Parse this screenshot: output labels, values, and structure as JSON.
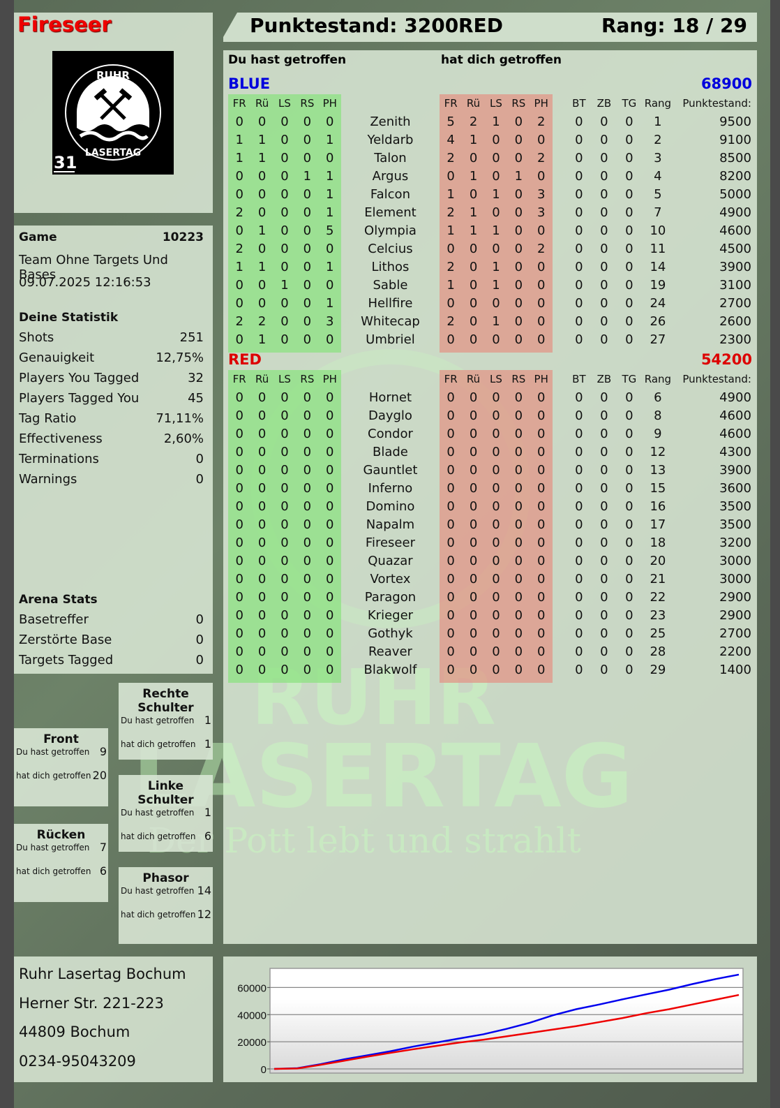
{
  "player": "Fireseer",
  "header": {
    "score_label": "Punktestand: 3200",
    "team": "RED",
    "rank_label": "Rang: 18 / 29"
  },
  "logo": {
    "text_top": "RUHR",
    "text_bottom": "LASERTAG",
    "number": "31"
  },
  "watermark": {
    "line1": "RUHR",
    "line2": "LASERTAG",
    "slogan": "Der Pott lebt und strahlt"
  },
  "section_labels": {
    "you_hit": "Du hast getroffen",
    "hit_you": "hat dich getroffen"
  },
  "columns": {
    "hits": [
      "FR",
      "Rü",
      "LS",
      "RS",
      "PH"
    ],
    "extra": [
      "BT",
      "ZB",
      "TG",
      "Rang",
      "Punktestand:"
    ]
  },
  "teams": [
    {
      "name": "BLUE",
      "score": "68900",
      "color": "#0000dd",
      "players": [
        [
          "Zenith",
          [
            0,
            0,
            0,
            0,
            0
          ],
          [
            5,
            2,
            1,
            0,
            2
          ],
          [
            0,
            0,
            0
          ],
          1,
          9500
        ],
        [
          "Yeldarb",
          [
            1,
            1,
            0,
            0,
            1
          ],
          [
            4,
            1,
            0,
            0,
            0
          ],
          [
            0,
            0,
            0
          ],
          2,
          9100
        ],
        [
          "Talon",
          [
            1,
            1,
            0,
            0,
            0
          ],
          [
            2,
            0,
            0,
            0,
            2
          ],
          [
            0,
            0,
            0
          ],
          3,
          8500
        ],
        [
          "Argus",
          [
            0,
            0,
            0,
            1,
            1
          ],
          [
            0,
            1,
            0,
            1,
            0
          ],
          [
            0,
            0,
            0
          ],
          4,
          8200
        ],
        [
          "Falcon",
          [
            0,
            0,
            0,
            0,
            1
          ],
          [
            1,
            0,
            1,
            0,
            3
          ],
          [
            0,
            0,
            0
          ],
          5,
          5000
        ],
        [
          "Element",
          [
            2,
            0,
            0,
            0,
            1
          ],
          [
            2,
            1,
            0,
            0,
            3
          ],
          [
            0,
            0,
            0
          ],
          7,
          4900
        ],
        [
          "Olympia",
          [
            0,
            1,
            0,
            0,
            5
          ],
          [
            1,
            1,
            1,
            0,
            0
          ],
          [
            0,
            0,
            0
          ],
          10,
          4600
        ],
        [
          "Celcius",
          [
            2,
            0,
            0,
            0,
            0
          ],
          [
            0,
            0,
            0,
            0,
            2
          ],
          [
            0,
            0,
            0
          ],
          11,
          4500
        ],
        [
          "Lithos",
          [
            1,
            1,
            0,
            0,
            1
          ],
          [
            2,
            0,
            1,
            0,
            0
          ],
          [
            0,
            0,
            0
          ],
          14,
          3900
        ],
        [
          "Sable",
          [
            0,
            0,
            1,
            0,
            0
          ],
          [
            1,
            0,
            1,
            0,
            0
          ],
          [
            0,
            0,
            0
          ],
          19,
          3100
        ],
        [
          "Hellfire",
          [
            0,
            0,
            0,
            0,
            1
          ],
          [
            0,
            0,
            0,
            0,
            0
          ],
          [
            0,
            0,
            0
          ],
          24,
          2700
        ],
        [
          "Whitecap",
          [
            2,
            2,
            0,
            0,
            3
          ],
          [
            2,
            0,
            1,
            0,
            0
          ],
          [
            0,
            0,
            0
          ],
          26,
          2600
        ],
        [
          "Umbriel",
          [
            0,
            1,
            0,
            0,
            0
          ],
          [
            0,
            0,
            0,
            0,
            0
          ],
          [
            0,
            0,
            0
          ],
          27,
          2300
        ]
      ]
    },
    {
      "name": "RED",
      "score": "54200",
      "color": "#dd0000",
      "players": [
        [
          "Hornet",
          [
            0,
            0,
            0,
            0,
            0
          ],
          [
            0,
            0,
            0,
            0,
            0
          ],
          [
            0,
            0,
            0
          ],
          6,
          4900
        ],
        [
          "Dayglo",
          [
            0,
            0,
            0,
            0,
            0
          ],
          [
            0,
            0,
            0,
            0,
            0
          ],
          [
            0,
            0,
            0
          ],
          8,
          4600
        ],
        [
          "Condor",
          [
            0,
            0,
            0,
            0,
            0
          ],
          [
            0,
            0,
            0,
            0,
            0
          ],
          [
            0,
            0,
            0
          ],
          9,
          4600
        ],
        [
          "Blade",
          [
            0,
            0,
            0,
            0,
            0
          ],
          [
            0,
            0,
            0,
            0,
            0
          ],
          [
            0,
            0,
            0
          ],
          12,
          4300
        ],
        [
          "Gauntlet",
          [
            0,
            0,
            0,
            0,
            0
          ],
          [
            0,
            0,
            0,
            0,
            0
          ],
          [
            0,
            0,
            0
          ],
          13,
          3900
        ],
        [
          "Inferno",
          [
            0,
            0,
            0,
            0,
            0
          ],
          [
            0,
            0,
            0,
            0,
            0
          ],
          [
            0,
            0,
            0
          ],
          15,
          3600
        ],
        [
          "Domino",
          [
            0,
            0,
            0,
            0,
            0
          ],
          [
            0,
            0,
            0,
            0,
            0
          ],
          [
            0,
            0,
            0
          ],
          16,
          3500
        ],
        [
          "Napalm",
          [
            0,
            0,
            0,
            0,
            0
          ],
          [
            0,
            0,
            0,
            0,
            0
          ],
          [
            0,
            0,
            0
          ],
          17,
          3500
        ],
        [
          "Fireseer",
          [
            0,
            0,
            0,
            0,
            0
          ],
          [
            0,
            0,
            0,
            0,
            0
          ],
          [
            0,
            0,
            0
          ],
          18,
          3200
        ],
        [
          "Quazar",
          [
            0,
            0,
            0,
            0,
            0
          ],
          [
            0,
            0,
            0,
            0,
            0
          ],
          [
            0,
            0,
            0
          ],
          20,
          3000
        ],
        [
          "Vortex",
          [
            0,
            0,
            0,
            0,
            0
          ],
          [
            0,
            0,
            0,
            0,
            0
          ],
          [
            0,
            0,
            0
          ],
          21,
          3000
        ],
        [
          "Paragon",
          [
            0,
            0,
            0,
            0,
            0
          ],
          [
            0,
            0,
            0,
            0,
            0
          ],
          [
            0,
            0,
            0
          ],
          22,
          2900
        ],
        [
          "Krieger",
          [
            0,
            0,
            0,
            0,
            0
          ],
          [
            0,
            0,
            0,
            0,
            0
          ],
          [
            0,
            0,
            0
          ],
          23,
          2900
        ],
        [
          "Gothyk",
          [
            0,
            0,
            0,
            0,
            0
          ],
          [
            0,
            0,
            0,
            0,
            0
          ],
          [
            0,
            0,
            0
          ],
          25,
          2700
        ],
        [
          "Reaver",
          [
            0,
            0,
            0,
            0,
            0
          ],
          [
            0,
            0,
            0,
            0,
            0
          ],
          [
            0,
            0,
            0
          ],
          28,
          2200
        ],
        [
          "Blakwolf",
          [
            0,
            0,
            0,
            0,
            0
          ],
          [
            0,
            0,
            0,
            0,
            0
          ],
          [
            0,
            0,
            0
          ],
          29,
          1400
        ]
      ]
    }
  ],
  "game": {
    "label": "Game",
    "id": "10223",
    "mode": "Team Ohne Targets Und Bases",
    "datetime": "09.07.2025 12:16:53"
  },
  "stats": {
    "title": "Deine Statistik",
    "items": [
      [
        "Shots",
        "251"
      ],
      [
        "Genauigkeit",
        "12,75%"
      ],
      [
        "Players You Tagged",
        "32"
      ],
      [
        "Players Tagged You",
        "45"
      ],
      [
        "Tag Ratio",
        "71,11%"
      ],
      [
        "Effectiveness",
        "2,60%"
      ],
      [
        "Terminations",
        "0"
      ],
      [
        "Warnings",
        "0"
      ]
    ]
  },
  "arena": {
    "title": "Arena Stats",
    "items": [
      [
        "Basetreffer",
        "0"
      ],
      [
        "Zerstörte Base",
        "0"
      ],
      [
        "Targets Tagged",
        "0"
      ]
    ]
  },
  "body_parts": [
    {
      "name": "Rechte Schulter",
      "you_hit": "1",
      "hit_you": "1"
    },
    {
      "name": "Front",
      "you_hit": "9",
      "hit_you": "20"
    },
    {
      "name": "Linke Schulter",
      "you_hit": "1",
      "hit_you": "6"
    },
    {
      "name": "Rücken",
      "you_hit": "7",
      "hit_you": "6"
    },
    {
      "name": "Phasor",
      "you_hit": "14",
      "hit_you": "12"
    }
  ],
  "address": [
    "Ruhr Lasertag Bochum",
    "Herner Str. 221-223",
    "44809 Bochum",
    "0234-95043209"
  ],
  "chart_data": {
    "type": "line",
    "ylim": [
      0,
      71000
    ],
    "yticks": [
      "0",
      "20000",
      "40000",
      "60000"
    ],
    "grid": true,
    "series": [
      {
        "color": "#0000ee",
        "values": [
          0,
          500,
          3500,
          7000,
          10000,
          13000,
          16500,
          19500,
          22500,
          25500,
          29500,
          34000,
          39500,
          44000,
          47500,
          51300,
          54900,
          58400,
          62500,
          66200,
          69500
        ]
      },
      {
        "color": "#ee0000",
        "values": [
          0,
          300,
          3000,
          6000,
          9000,
          11800,
          14500,
          17000,
          19500,
          21500,
          24000,
          26500,
          29000,
          31500,
          34500,
          37500,
          41000,
          44000,
          47500,
          51000,
          54500
        ]
      }
    ]
  }
}
